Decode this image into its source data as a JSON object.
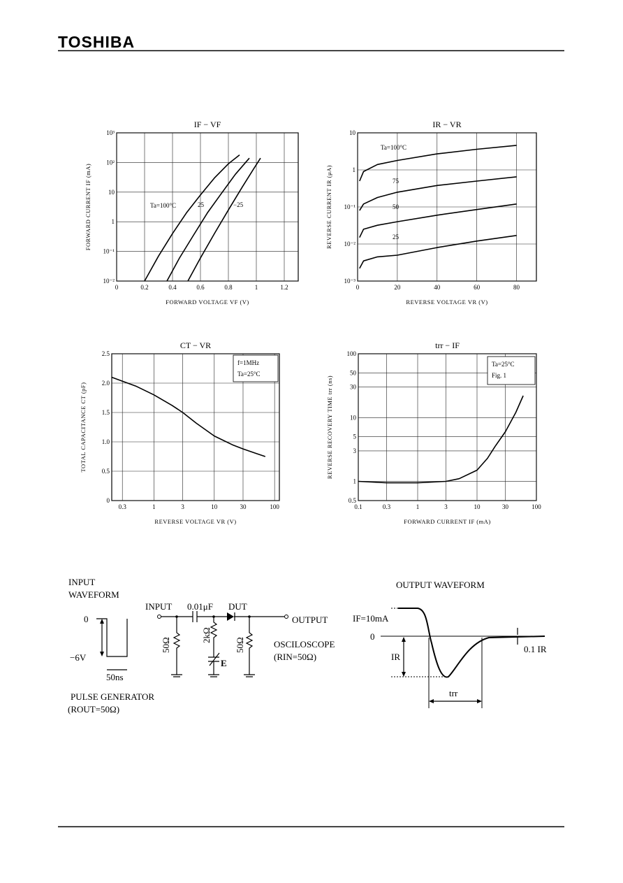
{
  "header": {
    "logo": "TOSHIBA"
  },
  "chart_data": [
    {
      "type": "line",
      "title": "IF − VF",
      "xlabel": "FORWARD VOLTAGE   VF   (V)",
      "ylabel": "FORWARD CURRENT   IF   (mA)",
      "xlim": [
        0,
        1.3
      ],
      "ylim": [
        0.01,
        1000
      ],
      "ylog": true,
      "grid": true,
      "xticks": [
        0,
        0.2,
        0.4,
        0.6,
        0.8,
        1.0,
        1.2
      ],
      "yticks": [
        {
          "value": 1000,
          "label": "10³"
        },
        {
          "value": 100,
          "label": "10²"
        },
        10,
        1,
        {
          "value": 0.1,
          "label": "10⁻¹"
        },
        {
          "value": 0.01,
          "label": "10⁻²"
        }
      ],
      "series": [
        {
          "name": "Ta=100°C",
          "color": "#000000",
          "x": [
            0.2,
            0.3,
            0.4,
            0.5,
            0.6,
            0.7,
            0.8,
            0.88
          ],
          "values": [
            0.01,
            0.07,
            0.4,
            2,
            8,
            30,
            90,
            180
          ]
        },
        {
          "name": "25",
          "color": "#000000",
          "x": [
            0.36,
            0.45,
            0.55,
            0.65,
            0.75,
            0.85,
            0.95
          ],
          "values": [
            0.01,
            0.06,
            0.35,
            2,
            9,
            40,
            140
          ]
        },
        {
          "name": "−25",
          "color": "#000000",
          "x": [
            0.51,
            0.6,
            0.7,
            0.8,
            0.9,
            0.98,
            1.03
          ],
          "values": [
            0.01,
            0.06,
            0.4,
            2.5,
            15,
            60,
            140
          ]
        }
      ]
    },
    {
      "type": "line",
      "title": "IR − VR",
      "xlabel": "REVERSE VOLTAGE   VR   (V)",
      "ylabel": "REVERSE CURRENT   IR   (μA)",
      "xlim": [
        0,
        90
      ],
      "ylim": [
        0.001,
        10
      ],
      "ylog": true,
      "grid": true,
      "xticks": [
        0,
        20,
        40,
        60,
        80
      ],
      "yticks": [
        10,
        1,
        {
          "value": 0.1,
          "label": "10⁻¹"
        },
        {
          "value": 0.01,
          "label": "10⁻²"
        },
        {
          "value": 0.001,
          "label": "10⁻³"
        }
      ],
      "series": [
        {
          "name": "Ta=100°C",
          "color": "#000000",
          "x": [
            1,
            3,
            10,
            20,
            40,
            60,
            80
          ],
          "values": [
            0.5,
            0.9,
            1.4,
            1.8,
            2.7,
            3.6,
            4.6
          ]
        },
        {
          "name": "75",
          "color": "#000000",
          "x": [
            1,
            3,
            10,
            20,
            40,
            60,
            80
          ],
          "values": [
            0.08,
            0.12,
            0.18,
            0.25,
            0.38,
            0.5,
            0.65
          ]
        },
        {
          "name": "50",
          "color": "#000000",
          "x": [
            1,
            3,
            10,
            20,
            40,
            60,
            80
          ],
          "values": [
            0.015,
            0.025,
            0.032,
            0.04,
            0.06,
            0.085,
            0.12
          ]
        },
        {
          "name": "25",
          "color": "#000000",
          "x": [
            1,
            3,
            10,
            20,
            40,
            60,
            80
          ],
          "values": [
            0.0022,
            0.0035,
            0.0045,
            0.005,
            0.008,
            0.012,
            0.017
          ]
        }
      ]
    },
    {
      "type": "line",
      "title": "CT − VR",
      "xlabel": "REVERSE VOLTAGE   VR   (V)",
      "ylabel": "TOTAL CAPACITANCE   CT   (pF)",
      "xlim": [
        0.2,
        120
      ],
      "ylim": [
        0,
        2.5
      ],
      "xlog": true,
      "grid": true,
      "xticks": [
        0.3,
        1,
        3,
        10,
        30,
        100
      ],
      "yticks": [
        0,
        0.5,
        {
          "value": 1,
          "label": "1.0"
        },
        1.5,
        {
          "value": 2,
          "label": "2.0"
        },
        2.5
      ],
      "annotations": [
        "f=1MHz",
        "Ta=25°C"
      ],
      "series": [
        {
          "color": "#000000",
          "x": [
            0.2,
            0.5,
            1,
            2,
            3,
            5,
            10,
            20,
            30,
            50,
            70
          ],
          "values": [
            2.1,
            1.95,
            1.8,
            1.62,
            1.5,
            1.32,
            1.1,
            0.95,
            0.88,
            0.8,
            0.75
          ]
        }
      ]
    },
    {
      "type": "line",
      "title": "trr − IF",
      "xlabel": "FORWARD CURRENT   IF   (mA)",
      "ylabel": "REVERSE RECOVERY TIME   trr   (ns)",
      "xlim": [
        0.1,
        100
      ],
      "ylim": [
        0.5,
        100
      ],
      "xlog": true,
      "ylog": true,
      "grid": true,
      "xticks": [
        0.1,
        0.3,
        1,
        3,
        10,
        30,
        100
      ],
      "yticks": [
        0.5,
        1,
        3,
        5,
        10,
        30,
        50,
        100
      ],
      "annotations": [
        "Ta=25°C",
        "Fig. 1"
      ],
      "series": [
        {
          "color": "#000000",
          "x": [
            0.1,
            0.3,
            1,
            3,
            5,
            10,
            15,
            20,
            30,
            45,
            60
          ],
          "values": [
            1.0,
            0.95,
            0.95,
            1.0,
            1.1,
            1.5,
            2.3,
            3.5,
            6,
            12,
            22
          ]
        }
      ]
    }
  ],
  "circuit": {
    "input_waveform": [
      "INPUT",
      "WAVEFORM"
    ],
    "zero": "0",
    "low": "−6V",
    "width": "50ns",
    "generator": "PULSE GENERATOR",
    "generator_r": "(ROUT=50Ω)",
    "input": "INPUT",
    "capacitor": "0.01μF",
    "dut": "DUT",
    "output": "OUTPUT",
    "r1": "50Ω",
    "r2": "2kΩ",
    "r3": "50Ω",
    "e": "E",
    "scope": "OSCILOSCOPE",
    "scope_r": "(RIN=50Ω)",
    "output_waveform": "OUTPUT WAVEFORM",
    "if": "IF=10mA",
    "out_zero": "0",
    "ir": "IR",
    "ir01": "0.1  IR",
    "trr": "trr"
  }
}
